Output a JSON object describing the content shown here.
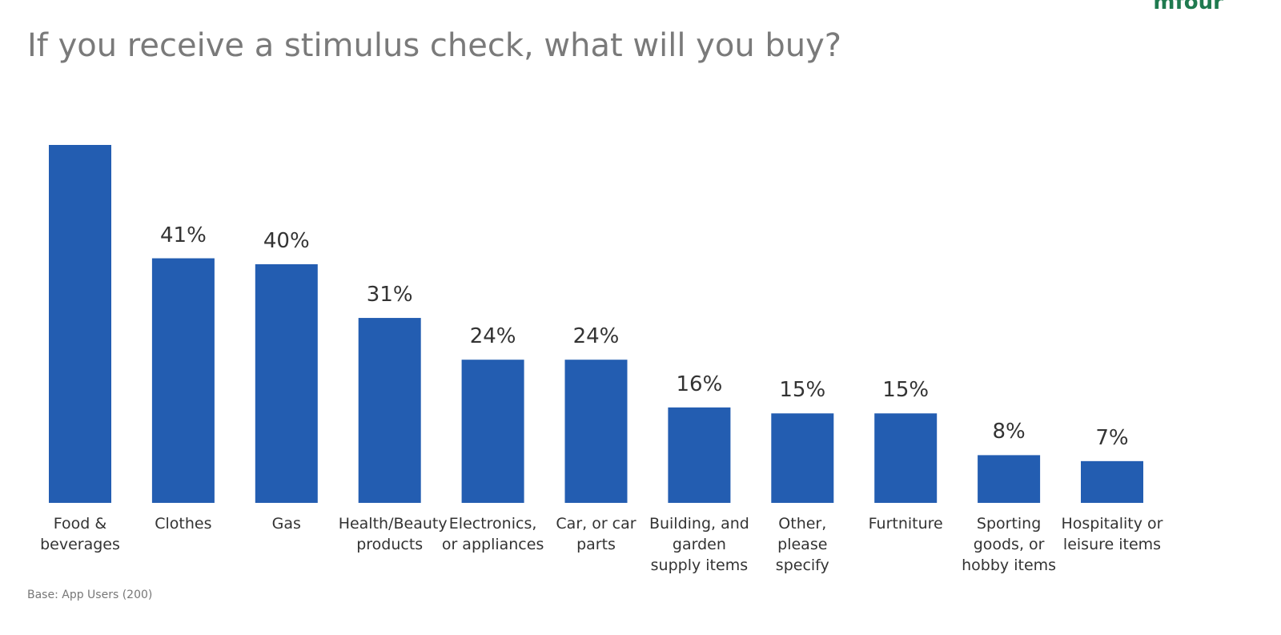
{
  "logo": "mfour",
  "chart_data": {
    "type": "bar",
    "title": "If you receive a stimulus check, what will you buy?",
    "categories": [
      "Food & beverages",
      "Clothes",
      "Gas",
      "Health/Beauty products",
      "Electronics, or appliances",
      "Car, or car parts",
      "Building, and garden supply items",
      "Other, please specify",
      "Furtniture",
      "Sporting goods, or hobby items",
      "Hospitality or leisure items"
    ],
    "values": [
      60,
      41,
      40,
      31,
      24,
      24,
      16,
      15,
      15,
      8,
      7
    ],
    "value_labels": [
      null,
      "41%",
      "40%",
      "31%",
      "24%",
      "24%",
      "16%",
      "15%",
      "15%",
      "8%",
      "7%"
    ],
    "color": "#235db1",
    "ylim": [
      0,
      60
    ],
    "note": "Base: App Users (200)"
  }
}
